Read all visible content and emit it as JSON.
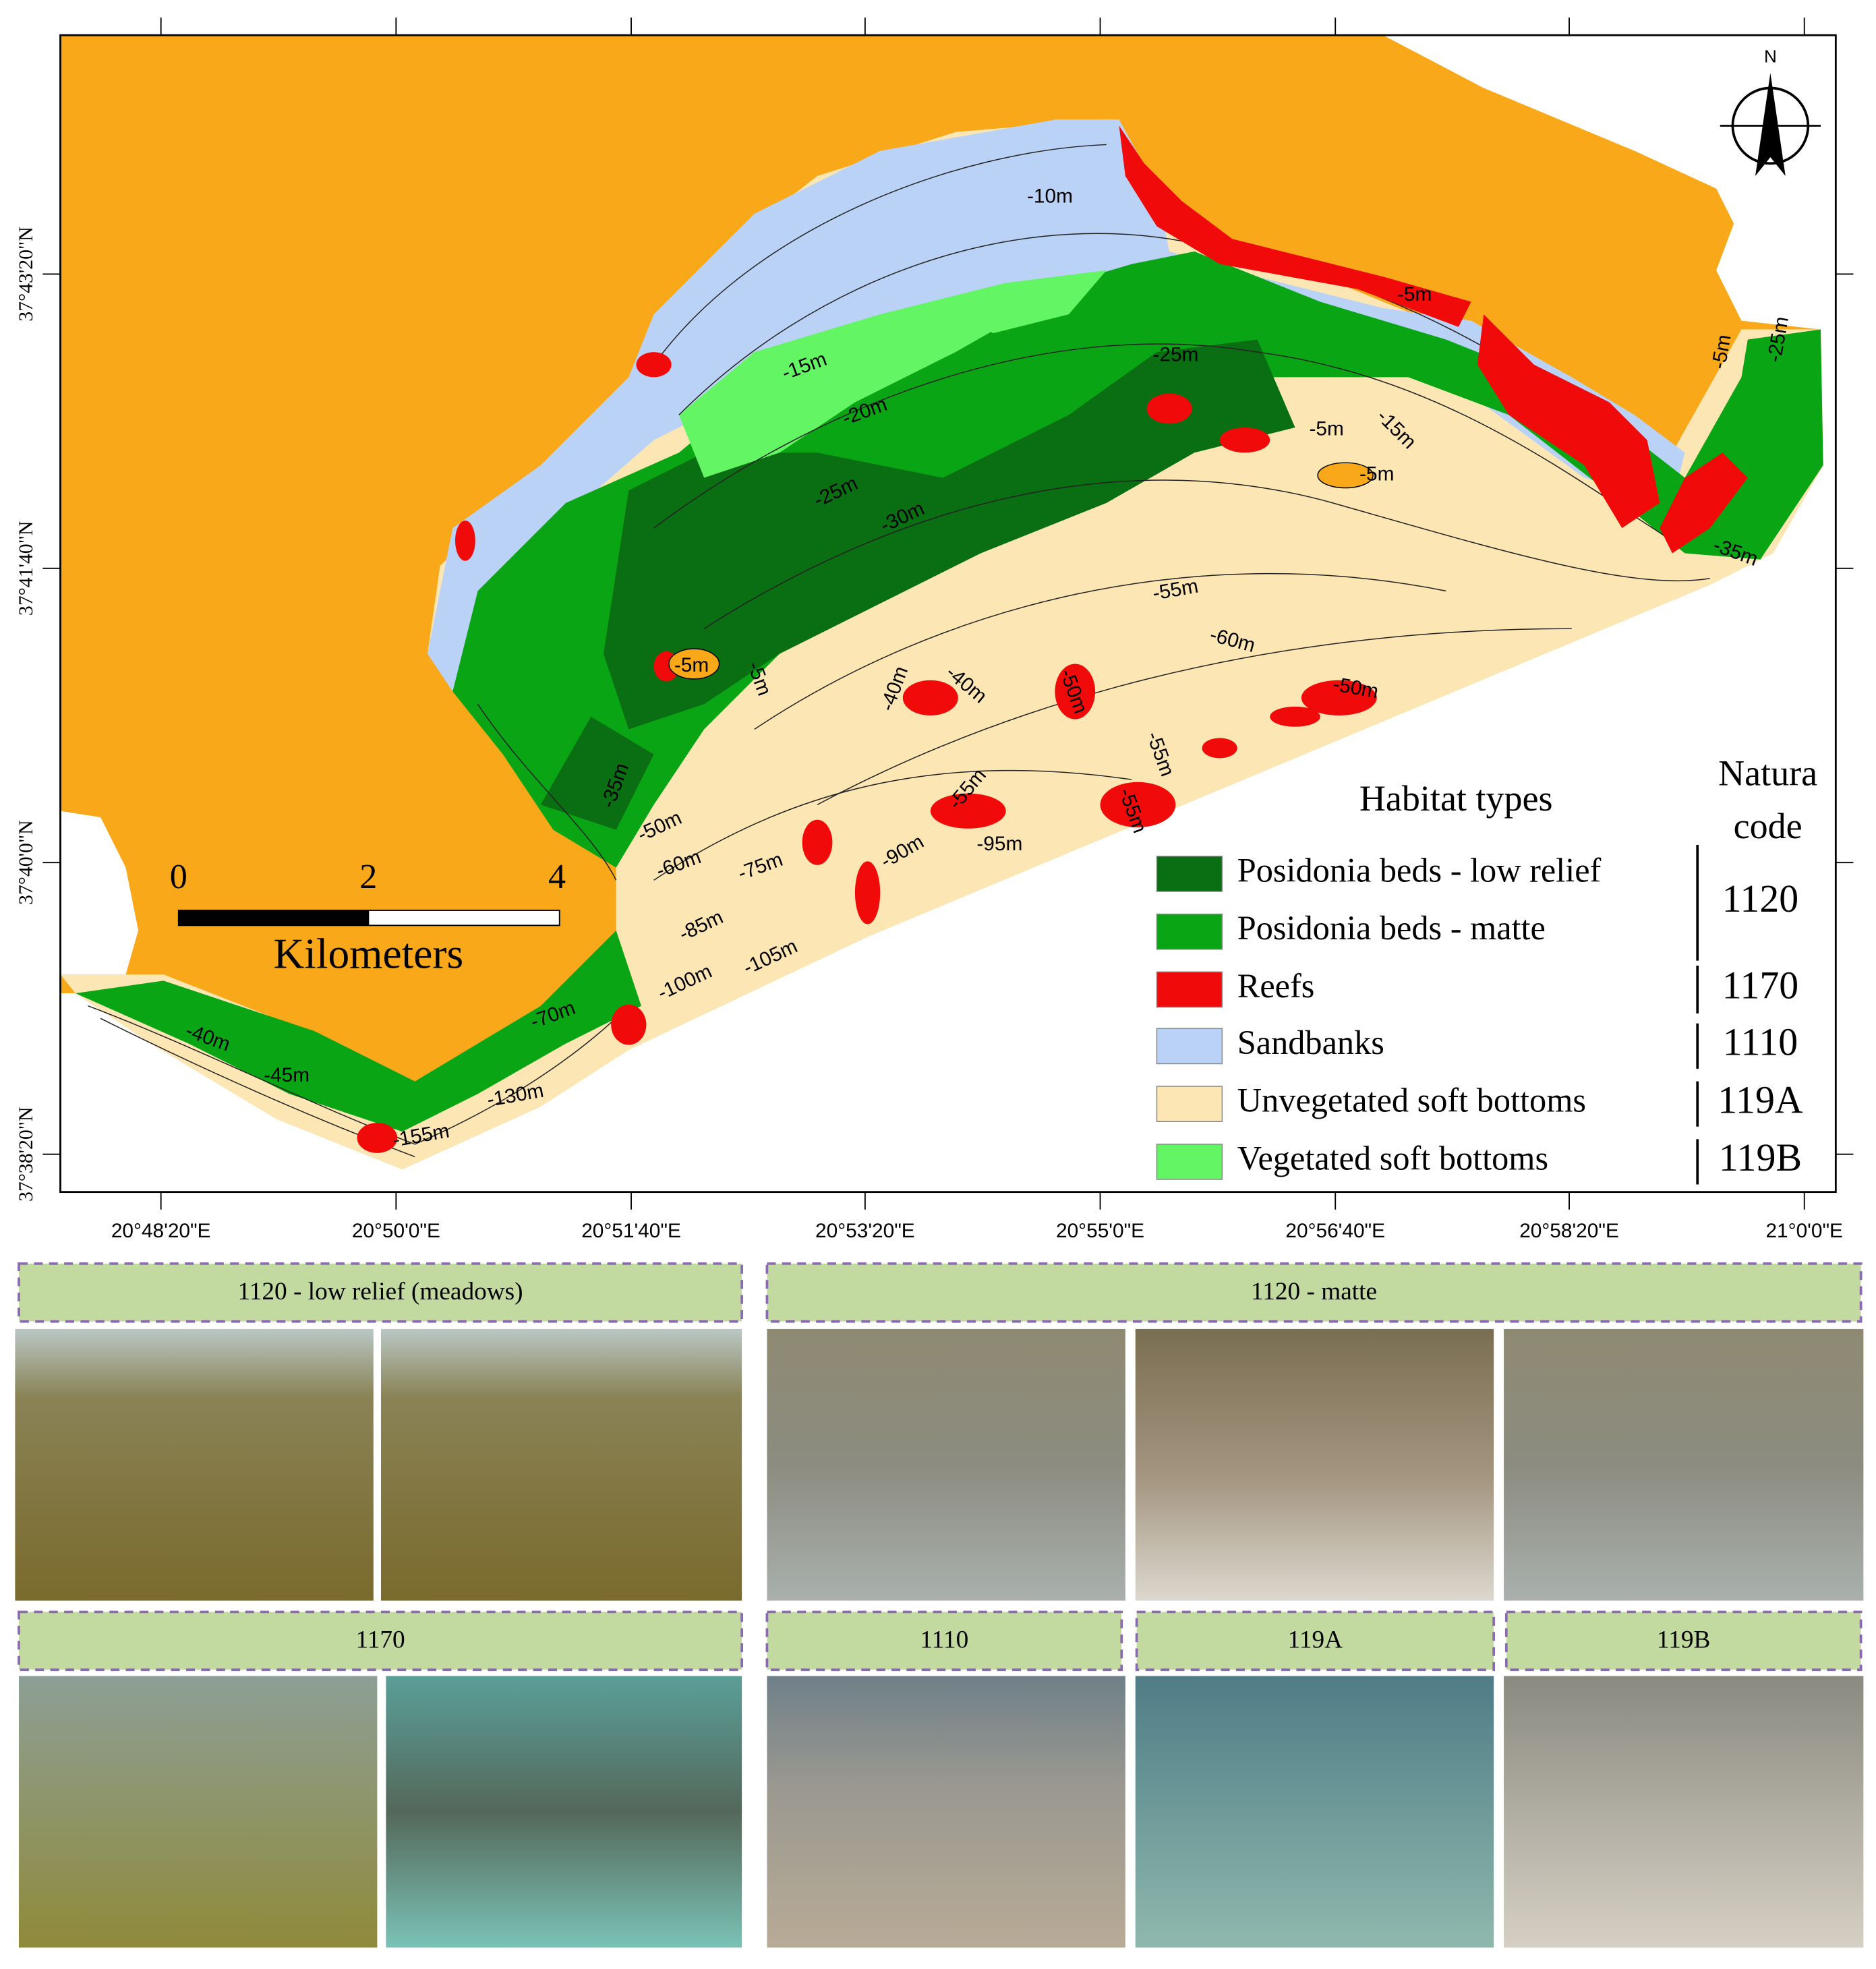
{
  "map": {
    "north": "N",
    "scale_bar": {
      "ticks": [
        "0",
        "2",
        "4"
      ],
      "unit": "Kilometers"
    },
    "x_labels": [
      "20°48'20\"E",
      "20°50'0\"E",
      "20°51'40\"E",
      "20°53'20\"E",
      "20°55'0\"E",
      "20°56'40\"E",
      "20°58'20\"E",
      "21°0'0\"E"
    ],
    "y_labels": [
      "37°43'20\"N",
      "37°41'40\"N",
      "37°40'0\"N",
      "37°38'20\"N"
    ],
    "depth_labels": [
      "-10m",
      "-5m",
      "-15m",
      "-20m",
      "-25m",
      "-30m",
      "-25m",
      "-5m",
      "-15m",
      "-5m",
      "-5m",
      "-25m",
      "-35m",
      "-55m",
      "-60m",
      "-5m",
      "-5m",
      "-40m",
      "-40m",
      "-50m",
      "-50m",
      "-55m",
      "-55m",
      "-35m",
      "-50m",
      "-60m",
      "-75m",
      "-90m",
      "-55m",
      "-95m",
      "-85m",
      "-100m",
      "-105m",
      "-40m",
      "-45m",
      "-70m",
      "-130m",
      "-155m"
    ],
    "legend": {
      "title": "Habitat types",
      "code_title": [
        "Natura",
        "code"
      ],
      "items": [
        {
          "label": "Posidonia beds - low relief",
          "color": "#0a6e12"
        },
        {
          "label": "Posidonia beds - matte",
          "color": "#0aa514"
        },
        {
          "label": "Reefs",
          "color": "#f00a0a"
        },
        {
          "label": "Sandbanks",
          "color": "#b9d2f5"
        },
        {
          "label": "Unvegetated soft bottoms",
          "color": "#fce6b4"
        },
        {
          "label": "Vegetated soft bottoms",
          "color": "#64f564"
        }
      ],
      "codes": [
        "1120",
        "1170",
        "1110",
        "119A",
        "119B"
      ]
    },
    "land_color": "#f9a81a"
  },
  "panels": [
    {
      "title": "1120 - low relief (meadows)"
    },
    {
      "title": "1120 - matte"
    },
    {
      "title": "1170"
    },
    {
      "title": "1110"
    },
    {
      "title": "119A"
    },
    {
      "title": "119B"
    }
  ]
}
